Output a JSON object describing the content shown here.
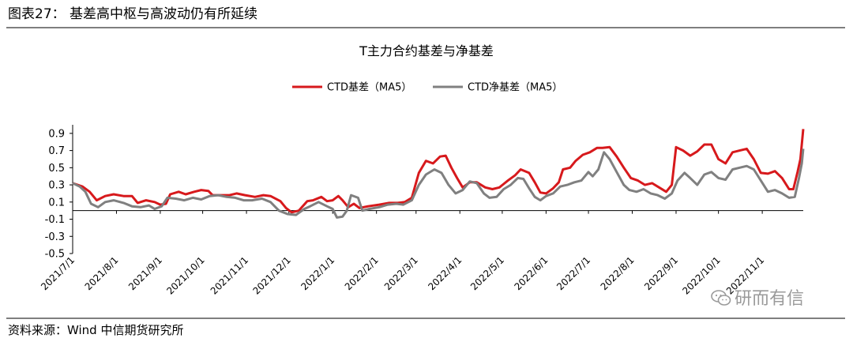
{
  "header": {
    "title": "图表27：  基差高中枢与高波动仍有所延续"
  },
  "footer": {
    "source": "资料来源：Wind  中信期货研究所"
  },
  "watermark": {
    "text": "研而有信",
    "icon": "wechat-icon"
  },
  "colors": {
    "rule": "#7f7f7f",
    "series1": "#d7191c",
    "series2": "#808080"
  },
  "chart_data": {
    "type": "line",
    "title": "T主力合约基差与净基差",
    "legend_position": "top-center",
    "grid": false,
    "ylim": [
      -0.5,
      1.0
    ],
    "yticks": [
      "0.9",
      "0.7",
      "0.5",
      "0.3",
      "0.1",
      "-0.1",
      "-0.3",
      "-0.5"
    ],
    "xticks": [
      "2021/7/1",
      "2021/8/1",
      "2021/9/1",
      "2021/10/1",
      "2021/11/1",
      "2021/12/1",
      "2022/1/1",
      "2022/2/1",
      "2022/3/1",
      "2022/4/1",
      "2022/5/1",
      "2022/6/1",
      "2022/7/1",
      "2022/8/1",
      "2022/9/1",
      "2022/10/1",
      "2022/11/1"
    ],
    "x_range": [
      "2021/7/1",
      "2022/11/30"
    ],
    "series": [
      {
        "name": "CTD基差（MA5）",
        "color": "#d7191c",
        "points": [
          [
            "2021/7/1",
            0.32
          ],
          [
            "2021/7/8",
            0.28
          ],
          [
            "2021/7/13",
            0.22
          ],
          [
            "2021/7/18",
            0.12
          ],
          [
            "2021/7/24",
            0.17
          ],
          [
            "2021/7/30",
            0.19
          ],
          [
            "2021/8/6",
            0.17
          ],
          [
            "2021/8/12",
            0.17
          ],
          [
            "2021/8/16",
            0.09
          ],
          [
            "2021/8/22",
            0.12
          ],
          [
            "2021/8/28",
            0.1
          ],
          [
            "2021/9/1",
            0.07
          ],
          [
            "2021/9/5",
            0.08
          ],
          [
            "2021/9/8",
            0.19
          ],
          [
            "2021/9/14",
            0.22
          ],
          [
            "2021/9/19",
            0.19
          ],
          [
            "2021/9/25",
            0.22
          ],
          [
            "2021/9/30",
            0.24
          ],
          [
            "2021/10/5",
            0.23
          ],
          [
            "2021/10/8",
            0.18
          ],
          [
            "2021/10/20",
            0.18
          ],
          [
            "2021/10/25",
            0.2
          ],
          [
            "2021/10/31",
            0.18
          ],
          [
            "2021/11/7",
            0.16
          ],
          [
            "2021/11/13",
            0.18
          ],
          [
            "2021/11/18",
            0.17
          ],
          [
            "2021/11/25",
            0.11
          ],
          [
            "2021/11/29",
            0.03
          ],
          [
            "2021/12/3",
            -0.02
          ],
          [
            "2021/12/8",
            0.0
          ],
          [
            "2021/12/14",
            0.11
          ],
          [
            "2021/12/18",
            0.12
          ],
          [
            "2021/12/24",
            0.16
          ],
          [
            "2021/12/28",
            0.11
          ],
          [
            "2022/1/1",
            0.12
          ],
          [
            "2022/1/5",
            0.17
          ],
          [
            "2022/1/8",
            0.12
          ],
          [
            "2022/1/12",
            0.04
          ],
          [
            "2022/1/16",
            0.08
          ],
          [
            "2022/1/20",
            0.03
          ],
          [
            "2022/1/26",
            0.05
          ],
          [
            "2022/2/3",
            0.07
          ],
          [
            "2022/2/10",
            0.09
          ],
          [
            "2022/2/16",
            0.09
          ],
          [
            "2022/2/21",
            0.1
          ],
          [
            "2022/2/26",
            0.15
          ],
          [
            "2022/3/3",
            0.44
          ],
          [
            "2022/3/8",
            0.58
          ],
          [
            "2022/3/13",
            0.55
          ],
          [
            "2022/3/18",
            0.63
          ],
          [
            "2022/3/22",
            0.64
          ],
          [
            "2022/3/26",
            0.5
          ],
          [
            "2022/3/30",
            0.38
          ],
          [
            "2022/4/3",
            0.27
          ],
          [
            "2022/4/8",
            0.33
          ],
          [
            "2022/4/13",
            0.33
          ],
          [
            "2022/4/19",
            0.27
          ],
          [
            "2022/4/24",
            0.25
          ],
          [
            "2022/4/29",
            0.27
          ],
          [
            "2022/5/5",
            0.35
          ],
          [
            "2022/5/10",
            0.41
          ],
          [
            "2022/5/14",
            0.48
          ],
          [
            "2022/5/20",
            0.44
          ],
          [
            "2022/5/24",
            0.33
          ],
          [
            "2022/5/28",
            0.21
          ],
          [
            "2022/6/1",
            0.2
          ],
          [
            "2022/6/6",
            0.26
          ],
          [
            "2022/6/10",
            0.33
          ],
          [
            "2022/6/13",
            0.48
          ],
          [
            "2022/6/18",
            0.5
          ],
          [
            "2022/6/22",
            0.58
          ],
          [
            "2022/6/27",
            0.65
          ],
          [
            "2022/7/2",
            0.68
          ],
          [
            "2022/7/7",
            0.73
          ],
          [
            "2022/7/11",
            0.73
          ],
          [
            "2022/7/16",
            0.74
          ],
          [
            "2022/7/21",
            0.63
          ],
          [
            "2022/7/26",
            0.5
          ],
          [
            "2022/7/31",
            0.38
          ],
          [
            "2022/8/5",
            0.35
          ],
          [
            "2022/8/10",
            0.3
          ],
          [
            "2022/8/15",
            0.32
          ],
          [
            "2022/8/20",
            0.27
          ],
          [
            "2022/8/25",
            0.22
          ],
          [
            "2022/8/29",
            0.3
          ],
          [
            "2022/9/1",
            0.74
          ],
          [
            "2022/9/6",
            0.7
          ],
          [
            "2022/9/11",
            0.64
          ],
          [
            "2022/9/16",
            0.69
          ],
          [
            "2022/9/21",
            0.77
          ],
          [
            "2022/9/26",
            0.77
          ],
          [
            "2022/10/1",
            0.6
          ],
          [
            "2022/10/6",
            0.55
          ],
          [
            "2022/10/11",
            0.68
          ],
          [
            "2022/10/16",
            0.7
          ],
          [
            "2022/10/21",
            0.72
          ],
          [
            "2022/10/26",
            0.6
          ],
          [
            "2022/10/31",
            0.44
          ],
          [
            "2022/11/5",
            0.43
          ],
          [
            "2022/11/10",
            0.46
          ],
          [
            "2022/11/15",
            0.38
          ],
          [
            "2022/11/20",
            0.25
          ],
          [
            "2022/11/23",
            0.25
          ],
          [
            "2022/11/26",
            0.45
          ],
          [
            "2022/11/28",
            0.6
          ],
          [
            "2022/11/30",
            0.95
          ]
        ]
      },
      {
        "name": "CTD净基差（MA5）",
        "color": "#808080",
        "points": [
          [
            "2021/7/1",
            0.32
          ],
          [
            "2021/7/6",
            0.28
          ],
          [
            "2021/7/10",
            0.22
          ],
          [
            "2021/7/14",
            0.08
          ],
          [
            "2021/7/19",
            0.04
          ],
          [
            "2021/7/24",
            0.1
          ],
          [
            "2021/7/30",
            0.12
          ],
          [
            "2021/8/6",
            0.09
          ],
          [
            "2021/8/12",
            0.05
          ],
          [
            "2021/8/18",
            0.04
          ],
          [
            "2021/8/24",
            0.06
          ],
          [
            "2021/8/28",
            0.02
          ],
          [
            "2021/9/2",
            0.05
          ],
          [
            "2021/9/6",
            0.15
          ],
          [
            "2021/9/12",
            0.14
          ],
          [
            "2021/9/18",
            0.12
          ],
          [
            "2021/9/24",
            0.15
          ],
          [
            "2021/9/30",
            0.13
          ],
          [
            "2021/10/6",
            0.17
          ],
          [
            "2021/10/12",
            0.18
          ],
          [
            "2021/10/18",
            0.16
          ],
          [
            "2021/10/24",
            0.15
          ],
          [
            "2021/10/30",
            0.12
          ],
          [
            "2021/11/5",
            0.12
          ],
          [
            "2021/11/12",
            0.14
          ],
          [
            "2021/11/18",
            0.1
          ],
          [
            "2021/11/24",
            0.0
          ],
          [
            "2021/11/30",
            -0.04
          ],
          [
            "2021/12/6",
            -0.05
          ],
          [
            "2021/12/12",
            0.02
          ],
          [
            "2021/12/16",
            0.05
          ],
          [
            "2021/12/22",
            0.1
          ],
          [
            "2021/12/28",
            0.05
          ],
          [
            "2022/1/1",
            0.02
          ],
          [
            "2022/1/4",
            -0.08
          ],
          [
            "2022/1/8",
            -0.07
          ],
          [
            "2022/1/11",
            0.0
          ],
          [
            "2022/1/14",
            0.18
          ],
          [
            "2022/1/19",
            0.15
          ],
          [
            "2022/1/22",
            0.0
          ],
          [
            "2022/1/27",
            0.02
          ],
          [
            "2022/2/3",
            0.04
          ],
          [
            "2022/2/9",
            0.07
          ],
          [
            "2022/2/15",
            0.08
          ],
          [
            "2022/2/20",
            0.07
          ],
          [
            "2022/2/26",
            0.12
          ],
          [
            "2022/3/3",
            0.3
          ],
          [
            "2022/3/8",
            0.42
          ],
          [
            "2022/3/14",
            0.48
          ],
          [
            "2022/3/19",
            0.44
          ],
          [
            "2022/3/24",
            0.3
          ],
          [
            "2022/3/29",
            0.2
          ],
          [
            "2022/4/3",
            0.24
          ],
          [
            "2022/4/8",
            0.34
          ],
          [
            "2022/4/13",
            0.32
          ],
          [
            "2022/4/18",
            0.2
          ],
          [
            "2022/4/22",
            0.15
          ],
          [
            "2022/4/27",
            0.16
          ],
          [
            "2022/5/2",
            0.25
          ],
          [
            "2022/5/7",
            0.3
          ],
          [
            "2022/5/12",
            0.38
          ],
          [
            "2022/5/16",
            0.37
          ],
          [
            "2022/5/20",
            0.26
          ],
          [
            "2022/5/24",
            0.16
          ],
          [
            "2022/5/28",
            0.12
          ],
          [
            "2022/6/1",
            0.17
          ],
          [
            "2022/6/6",
            0.2
          ],
          [
            "2022/6/11",
            0.28
          ],
          [
            "2022/6/16",
            0.3
          ],
          [
            "2022/6/21",
            0.33
          ],
          [
            "2022/6/26",
            0.35
          ],
          [
            "2022/7/1",
            0.45
          ],
          [
            "2022/7/4",
            0.4
          ],
          [
            "2022/7/8",
            0.48
          ],
          [
            "2022/7/12",
            0.68
          ],
          [
            "2022/7/16",
            0.6
          ],
          [
            "2022/7/21",
            0.45
          ],
          [
            "2022/7/26",
            0.3
          ],
          [
            "2022/7/30",
            0.24
          ],
          [
            "2022/8/4",
            0.22
          ],
          [
            "2022/8/9",
            0.25
          ],
          [
            "2022/8/14",
            0.2
          ],
          [
            "2022/8/19",
            0.18
          ],
          [
            "2022/8/24",
            0.14
          ],
          [
            "2022/8/29",
            0.2
          ],
          [
            "2022/9/2",
            0.35
          ],
          [
            "2022/9/7",
            0.44
          ],
          [
            "2022/9/11",
            0.38
          ],
          [
            "2022/9/16",
            0.3
          ],
          [
            "2022/9/21",
            0.42
          ],
          [
            "2022/9/26",
            0.45
          ],
          [
            "2022/10/1",
            0.38
          ],
          [
            "2022/10/6",
            0.36
          ],
          [
            "2022/10/11",
            0.48
          ],
          [
            "2022/10/16",
            0.5
          ],
          [
            "2022/10/21",
            0.52
          ],
          [
            "2022/10/26",
            0.48
          ],
          [
            "2022/10/31",
            0.35
          ],
          [
            "2022/11/5",
            0.22
          ],
          [
            "2022/11/10",
            0.24
          ],
          [
            "2022/11/15",
            0.2
          ],
          [
            "2022/11/20",
            0.15
          ],
          [
            "2022/11/24",
            0.16
          ],
          [
            "2022/11/27",
            0.38
          ],
          [
            "2022/11/29",
            0.55
          ],
          [
            "2022/11/30",
            0.72
          ]
        ]
      }
    ]
  }
}
